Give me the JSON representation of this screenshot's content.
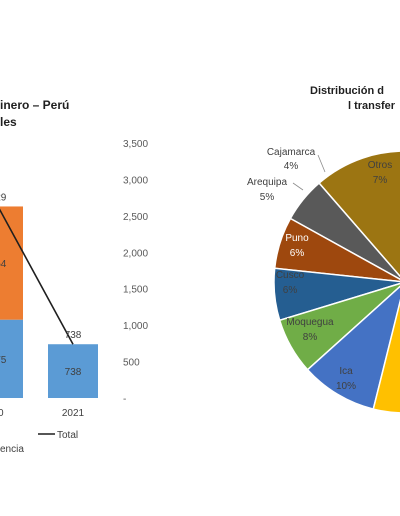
{
  "left_chart": {
    "title_line1": "inero – Perú",
    "title_line2": "les",
    "chart_data": {
      "type": "bar",
      "categories": [
        "20",
        "2021"
      ],
      "series": [
        {
          "name": "",
          "values": [
            1075,
            738
          ],
          "labels": [
            "075",
            "738"
          ],
          "color": "#5b9bd5"
        },
        {
          "name": "",
          "values": [
            1554,
            0
          ],
          "labels": [
            "554",
            ""
          ],
          "color": "#ed7d31"
        }
      ],
      "total_series": {
        "name": "Total",
        "values": [
          2629,
          738
        ],
        "labels": [
          "629",
          "738"
        ],
        "color": "#1f1f1f"
      },
      "yticks": [
        "3,500",
        "3,000",
        "2,500",
        "2,000",
        "1,500",
        "1,000",
        "500",
        "-"
      ],
      "ylim": [
        0,
        3500
      ],
      "legend": [
        {
          "label": "encia",
          "kind": "text"
        },
        {
          "label": "Total",
          "kind": "line"
        }
      ]
    }
  },
  "right_chart": {
    "title_line1": "Distribución d",
    "title_line2": "l transfer",
    "chart_data": {
      "type": "pie",
      "slices": [
        {
          "name": "Otros",
          "value": 7,
          "label": "7%",
          "color": "#9c7512"
        },
        {
          "name": "Cajamarca",
          "value": 4,
          "label": "4%",
          "color": "#595959"
        },
        {
          "name": "Arequipa",
          "value": 5,
          "label": "5%",
          "color": "#9e480e"
        },
        {
          "name": "Puno",
          "value": 6,
          "label": "6%",
          "color": "#255e91"
        },
        {
          "name": "Cusco",
          "value": 6,
          "label": "6%",
          "color": "#70ad47"
        },
        {
          "name": "Moquegua",
          "value": 8,
          "label": "8%",
          "color": "#4472c4"
        },
        {
          "name": "Ica",
          "value": 10,
          "label": "10%",
          "color": "#ffc000"
        },
        {
          "name": "",
          "value": 5,
          "label": "",
          "color": "#a5a5a5"
        }
      ]
    }
  }
}
